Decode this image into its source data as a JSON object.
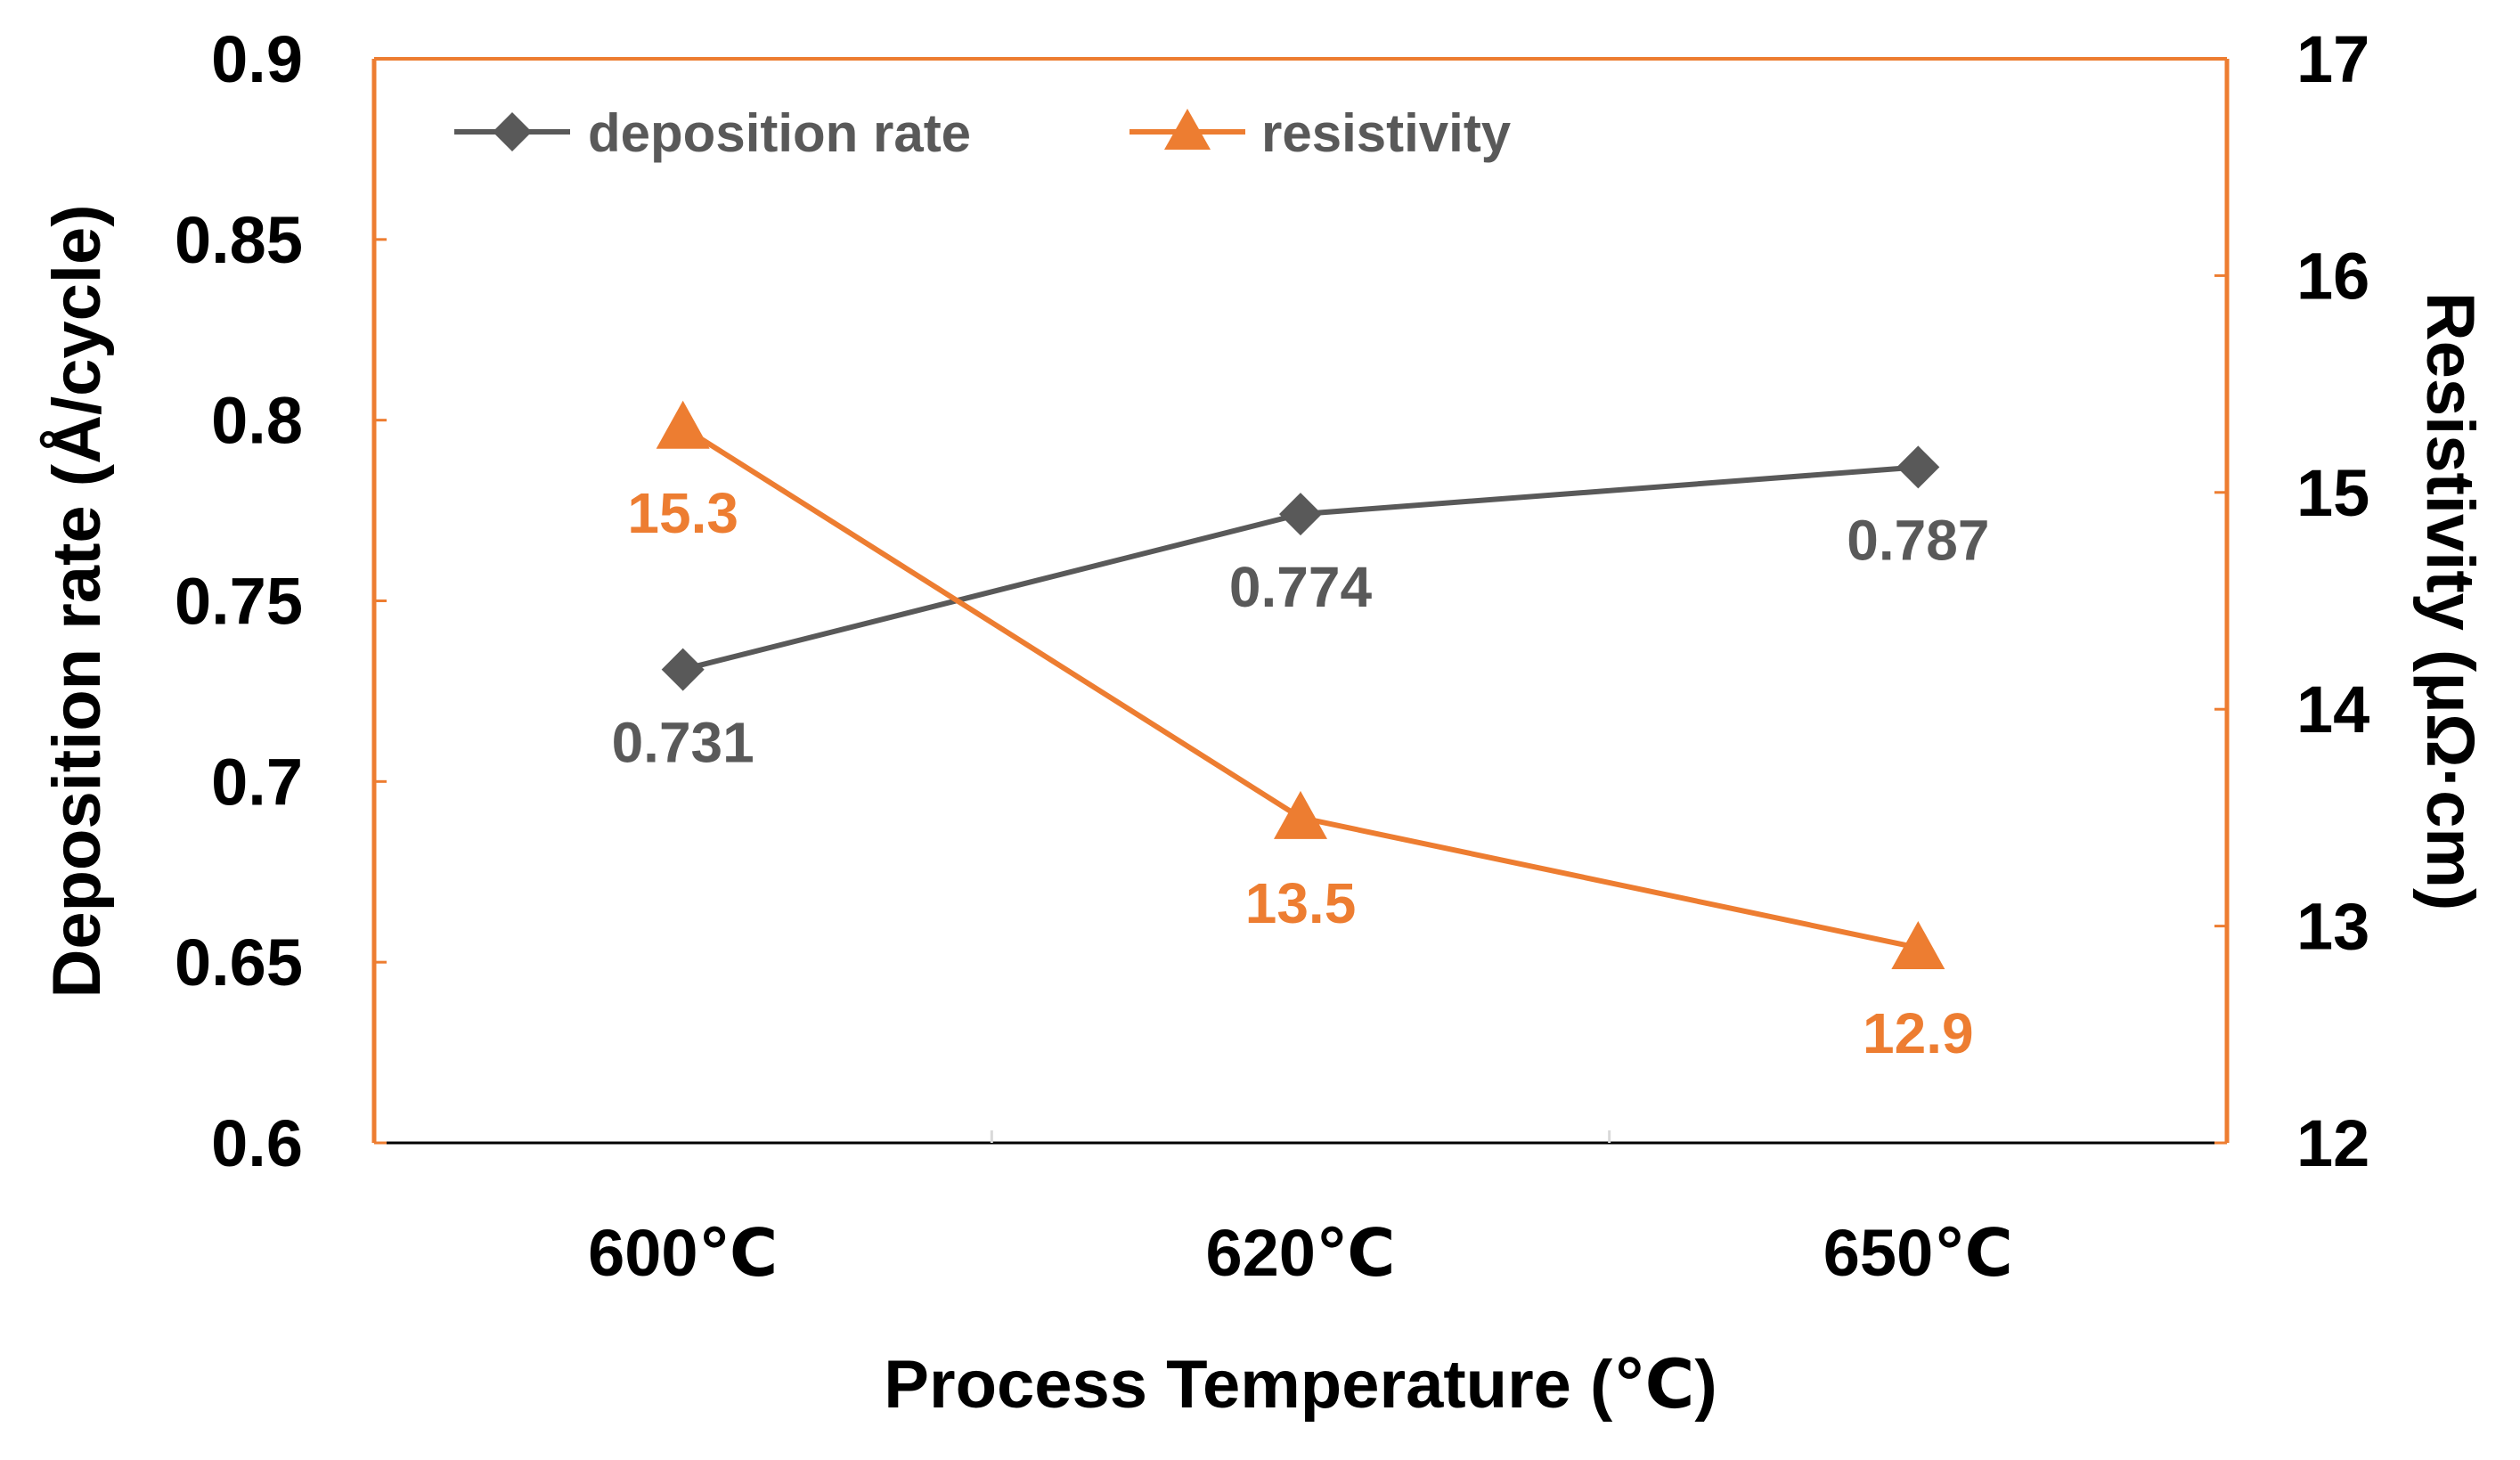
{
  "chart_data": {
    "type": "line",
    "categories": [
      "600℃",
      "620℃",
      "650℃"
    ],
    "xlabel": "Process Temperature (℃)",
    "ylabel_left": "Deposition rate (Å/cycle)",
    "ylabel_right": "Resistivity (μΩ·cm)",
    "ylim_left": [
      0.6,
      0.9
    ],
    "yticks_left": [
      "0.6",
      "0.65",
      "0.7",
      "0.75",
      "0.8",
      "0.85",
      "0.9"
    ],
    "ylim_right": [
      12,
      17
    ],
    "yticks_right": [
      "12",
      "13",
      "14",
      "15",
      "16",
      "17"
    ],
    "legend_position": "top-left",
    "series": [
      {
        "name": "deposition rate",
        "axis": "left",
        "marker": "diamond",
        "color": "#595959",
        "values": [
          0.731,
          0.774,
          0.787
        ],
        "labels": [
          "0.731",
          "0.774",
          "0.787"
        ],
        "label_position": "below"
      },
      {
        "name": "resistivity",
        "axis": "right",
        "marker": "triangle",
        "color": "#ED7D31",
        "values": [
          15.3,
          13.5,
          12.9
        ],
        "labels": [
          "15.3",
          "13.5",
          "12.9"
        ],
        "label_position": "below"
      }
    ]
  }
}
